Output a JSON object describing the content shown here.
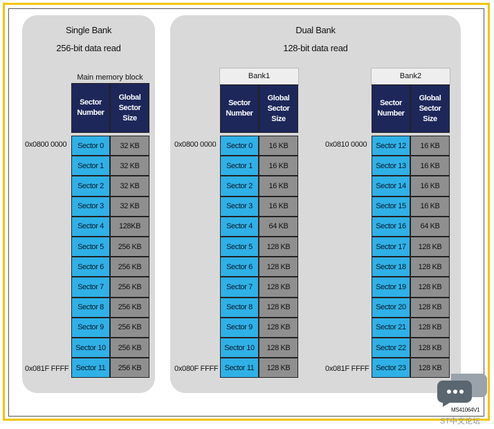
{
  "single_bank": {
    "title": "Single Bank",
    "subtitle": "256-bit data read",
    "block_label": "Main memory block",
    "headers": [
      "Sector Number",
      "Global Sector Size"
    ],
    "start_address": "0x0800 0000",
    "end_address": "0x081F FFFF",
    "rows": [
      [
        "Sector 0",
        "32 KB"
      ],
      [
        "Sector 1",
        "32 KB"
      ],
      [
        "Sector 2",
        "32 KB"
      ],
      [
        "Sector 3",
        "32 KB"
      ],
      [
        "Sector 4",
        "128KB"
      ],
      [
        "Sector 5",
        "256 KB"
      ],
      [
        "Sector 6",
        "256 KB"
      ],
      [
        "Sector 7",
        "256 KB"
      ],
      [
        "Sector 8",
        "256 KB"
      ],
      [
        "Sector 9",
        "256 KB"
      ],
      [
        "Sector 10",
        "256 KB"
      ],
      [
        "Sector 11",
        "256 KB"
      ]
    ]
  },
  "dual_bank": {
    "title": "Dual Bank",
    "subtitle": "128-bit data read",
    "banks": [
      {
        "label": "Bank1",
        "headers": [
          "Sector Number",
          "Global Sector Size"
        ],
        "start_address": "0x0800 0000",
        "end_address": "0x080F FFFF",
        "rows": [
          [
            "Sector 0",
            "16 KB"
          ],
          [
            "Sector 1",
            "16 KB"
          ],
          [
            "Sector 2",
            "16 KB"
          ],
          [
            "Sector 3",
            "16 KB"
          ],
          [
            "Sector 4",
            "64 KB"
          ],
          [
            "Sector 5",
            "128 KB"
          ],
          [
            "Sector 6",
            "128 KB"
          ],
          [
            "Sector 7",
            "128 KB"
          ],
          [
            "Sector 8",
            "128 KB"
          ],
          [
            "Sector 9",
            "128 KB"
          ],
          [
            "Sector 10",
            "128 KB"
          ],
          [
            "Sector 11",
            "128 KB"
          ]
        ]
      },
      {
        "label": "Bank2",
        "headers": [
          "Sector Number",
          "Global Sector Size"
        ],
        "start_address": "0x0810 0000",
        "end_address": "0x081F FFFF",
        "rows": [
          [
            "Sector 12",
            "16 KB"
          ],
          [
            "Sector 13",
            "16 KB"
          ],
          [
            "Sector 14",
            "16 KB"
          ],
          [
            "Sector 15",
            "16 KB"
          ],
          [
            "Sector 16",
            "64 KB"
          ],
          [
            "Sector 17",
            "128 KB"
          ],
          [
            "Sector 18",
            "128 KB"
          ],
          [
            "Sector 19",
            "128 KB"
          ],
          [
            "Sector 20",
            "128 KB"
          ],
          [
            "Sector 21",
            "128 KB"
          ],
          [
            "Sector 22",
            "128 KB"
          ],
          [
            "Sector 23",
            "128 KB"
          ]
        ]
      }
    ]
  },
  "figure_id": "MS41064V1",
  "watermark": "ST中文论坛"
}
